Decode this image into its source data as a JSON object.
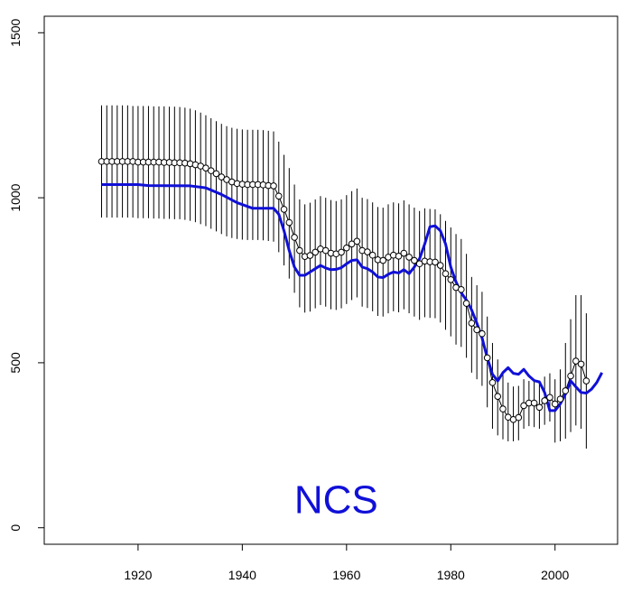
{
  "chart_data": {
    "type": "line",
    "title": "",
    "xlabel": "",
    "ylabel": "",
    "xlim": [
      1902,
      2012
    ],
    "ylim": [
      -50,
      1550
    ],
    "x_ticks": [
      1920,
      1940,
      1960,
      1980,
      2000
    ],
    "y_ticks": [
      0,
      500,
      1000,
      1500
    ],
    "x_tick_labels": [
      "1920",
      "1940",
      "1960",
      "1980",
      "2000"
    ],
    "y_tick_labels": [
      "0",
      "500",
      "1000",
      "1500"
    ],
    "grid": false,
    "legend": "none",
    "annotation": {
      "text": "NCS",
      "x": 1958,
      "y": 45,
      "color": "#1010d8"
    },
    "series": [
      {
        "style": "points-with-line-and-error-bars",
        "color": "#000000",
        "points": [
          [
            1913,
            1110
          ],
          [
            1914,
            1110
          ],
          [
            1915,
            1110
          ],
          [
            1916,
            1110
          ],
          [
            1917,
            1110
          ],
          [
            1918,
            1110
          ],
          [
            1919,
            1110
          ],
          [
            1920,
            1108
          ],
          [
            1921,
            1108
          ],
          [
            1922,
            1108
          ],
          [
            1923,
            1108
          ],
          [
            1924,
            1108
          ],
          [
            1925,
            1107
          ],
          [
            1926,
            1107
          ],
          [
            1927,
            1106
          ],
          [
            1928,
            1106
          ],
          [
            1929,
            1105
          ],
          [
            1930,
            1103
          ],
          [
            1931,
            1100
          ],
          [
            1932,
            1096
          ],
          [
            1933,
            1090
          ],
          [
            1934,
            1082
          ],
          [
            1935,
            1073
          ],
          [
            1936,
            1063
          ],
          [
            1937,
            1055
          ],
          [
            1938,
            1048
          ],
          [
            1939,
            1043
          ],
          [
            1940,
            1041
          ],
          [
            1941,
            1040
          ],
          [
            1942,
            1040
          ],
          [
            1943,
            1040
          ],
          [
            1944,
            1039
          ],
          [
            1945,
            1037
          ],
          [
            1946,
            1036
          ],
          [
            1947,
            1005
          ],
          [
            1948,
            965
          ],
          [
            1949,
            925
          ],
          [
            1950,
            880
          ],
          [
            1951,
            840
          ],
          [
            1952,
            822
          ],
          [
            1953,
            825
          ],
          [
            1954,
            835
          ],
          [
            1955,
            845
          ],
          [
            1956,
            840
          ],
          [
            1957,
            832
          ],
          [
            1958,
            830
          ],
          [
            1959,
            835
          ],
          [
            1960,
            848
          ],
          [
            1961,
            860
          ],
          [
            1962,
            868
          ],
          [
            1963,
            840
          ],
          [
            1964,
            836
          ],
          [
            1965,
            826
          ],
          [
            1966,
            812
          ],
          [
            1967,
            810
          ],
          [
            1968,
            820
          ],
          [
            1969,
            826
          ],
          [
            1970,
            823
          ],
          [
            1971,
            832
          ],
          [
            1972,
            820
          ],
          [
            1973,
            810
          ],
          [
            1974,
            800
          ],
          [
            1975,
            808
          ],
          [
            1976,
            806
          ],
          [
            1977,
            805
          ],
          [
            1978,
            795
          ],
          [
            1979,
            770
          ],
          [
            1980,
            752
          ],
          [
            1981,
            728
          ],
          [
            1982,
            722
          ],
          [
            1983,
            680
          ],
          [
            1984,
            620
          ],
          [
            1985,
            600
          ],
          [
            1986,
            588
          ],
          [
            1987,
            515
          ],
          [
            1988,
            440
          ],
          [
            1989,
            398
          ],
          [
            1990,
            360
          ],
          [
            1991,
            335
          ],
          [
            1992,
            328
          ],
          [
            1993,
            334
          ],
          [
            1994,
            370
          ],
          [
            1995,
            378
          ],
          [
            1996,
            378
          ],
          [
            1997,
            365
          ],
          [
            1998,
            385
          ],
          [
            1999,
            395
          ],
          [
            2000,
            375
          ],
          [
            2001,
            390
          ],
          [
            2002,
            415
          ],
          [
            2003,
            460
          ],
          [
            2004,
            505
          ],
          [
            2005,
            496
          ],
          [
            2006,
            445
          ]
        ],
        "error_bars": [
          [
            1913,
            940,
            1280
          ],
          [
            1914,
            940,
            1280
          ],
          [
            1915,
            940,
            1280
          ],
          [
            1916,
            940,
            1280
          ],
          [
            1917,
            940,
            1280
          ],
          [
            1918,
            940,
            1280
          ],
          [
            1919,
            940,
            1278
          ],
          [
            1920,
            938,
            1278
          ],
          [
            1921,
            938,
            1278
          ],
          [
            1922,
            938,
            1278
          ],
          [
            1923,
            937,
            1277
          ],
          [
            1924,
            937,
            1277
          ],
          [
            1925,
            936,
            1277
          ],
          [
            1926,
            936,
            1276
          ],
          [
            1927,
            935,
            1276
          ],
          [
            1928,
            935,
            1275
          ],
          [
            1929,
            933,
            1273
          ],
          [
            1930,
            930,
            1270
          ],
          [
            1931,
            926,
            1265
          ],
          [
            1932,
            920,
            1258
          ],
          [
            1933,
            914,
            1250
          ],
          [
            1934,
            906,
            1241
          ],
          [
            1935,
            898,
            1232
          ],
          [
            1936,
            890,
            1224
          ],
          [
            1937,
            883,
            1217
          ],
          [
            1938,
            878,
            1212
          ],
          [
            1939,
            875,
            1209
          ],
          [
            1940,
            873,
            1207
          ],
          [
            1941,
            872,
            1206
          ],
          [
            1942,
            872,
            1206
          ],
          [
            1943,
            872,
            1206
          ],
          [
            1944,
            871,
            1205
          ],
          [
            1945,
            869,
            1203
          ],
          [
            1946,
            867,
            1201
          ],
          [
            1947,
            835,
            1170
          ],
          [
            1948,
            795,
            1130
          ],
          [
            1949,
            755,
            1090
          ],
          [
            1950,
            712,
            1040
          ],
          [
            1951,
            668,
            995
          ],
          [
            1952,
            652,
            980
          ],
          [
            1953,
            655,
            985
          ],
          [
            1954,
            665,
            995
          ],
          [
            1955,
            675,
            1005
          ],
          [
            1956,
            670,
            1000
          ],
          [
            1957,
            662,
            993
          ],
          [
            1958,
            660,
            990
          ],
          [
            1959,
            665,
            995
          ],
          [
            1960,
            678,
            1008
          ],
          [
            1961,
            690,
            1020
          ],
          [
            1962,
            698,
            1028
          ],
          [
            1963,
            670,
            1000
          ],
          [
            1964,
            666,
            996
          ],
          [
            1965,
            656,
            986
          ],
          [
            1966,
            642,
            972
          ],
          [
            1967,
            640,
            970
          ],
          [
            1968,
            650,
            980
          ],
          [
            1969,
            656,
            986
          ],
          [
            1970,
            653,
            983
          ],
          [
            1971,
            662,
            992
          ],
          [
            1972,
            650,
            980
          ],
          [
            1973,
            640,
            970
          ],
          [
            1974,
            630,
            960
          ],
          [
            1975,
            638,
            968
          ],
          [
            1976,
            636,
            966
          ],
          [
            1977,
            635,
            965
          ],
          [
            1978,
            622,
            950
          ],
          [
            1979,
            600,
            930
          ],
          [
            1980,
            580,
            910
          ],
          [
            1981,
            555,
            890
          ],
          [
            1982,
            548,
            875
          ],
          [
            1983,
            515,
            830
          ],
          [
            1984,
            470,
            760
          ],
          [
            1985,
            450,
            735
          ],
          [
            1986,
            430,
            715
          ],
          [
            1987,
            365,
            640
          ],
          [
            1988,
            300,
            560
          ],
          [
            1989,
            280,
            510
          ],
          [
            1990,
            268,
            472
          ],
          [
            1991,
            262,
            440
          ],
          [
            1992,
            262,
            428
          ],
          [
            1993,
            265,
            430
          ],
          [
            1994,
            300,
            450
          ],
          [
            1995,
            308,
            445
          ],
          [
            1996,
            305,
            450
          ],
          [
            1997,
            300,
            438
          ],
          [
            1998,
            312,
            458
          ],
          [
            1999,
            322,
            468
          ],
          [
            2000,
            258,
            450
          ],
          [
            2001,
            262,
            480
          ],
          [
            2002,
            270,
            560
          ],
          [
            2003,
            290,
            632
          ],
          [
            2004,
            310,
            705
          ],
          [
            2005,
            300,
            705
          ],
          [
            2006,
            240,
            650
          ]
        ]
      },
      {
        "style": "line",
        "color": "#1010d8",
        "points": [
          [
            1913,
            1040
          ],
          [
            1917,
            1040
          ],
          [
            1920,
            1040
          ],
          [
            1922,
            1037
          ],
          [
            1930,
            1036
          ],
          [
            1933,
            1030
          ],
          [
            1936,
            1010
          ],
          [
            1939,
            985
          ],
          [
            1942,
            968
          ],
          [
            1946,
            968
          ],
          [
            1947,
            950
          ],
          [
            1948,
            900
          ],
          [
            1949,
            840
          ],
          [
            1950,
            790
          ],
          [
            1951,
            765
          ],
          [
            1952,
            765
          ],
          [
            1953,
            775
          ],
          [
            1954,
            785
          ],
          [
            1955,
            795
          ],
          [
            1956,
            787
          ],
          [
            1957,
            782
          ],
          [
            1958,
            783
          ],
          [
            1959,
            788
          ],
          [
            1960,
            800
          ],
          [
            1961,
            810
          ],
          [
            1962,
            812
          ],
          [
            1963,
            790
          ],
          [
            1964,
            785
          ],
          [
            1965,
            775
          ],
          [
            1966,
            760
          ],
          [
            1967,
            758
          ],
          [
            1968,
            768
          ],
          [
            1969,
            775
          ],
          [
            1970,
            772
          ],
          [
            1971,
            782
          ],
          [
            1972,
            770
          ],
          [
            1973,
            790
          ],
          [
            1974,
            815
          ],
          [
            1975,
            860
          ],
          [
            1976,
            912
          ],
          [
            1977,
            915
          ],
          [
            1978,
            900
          ],
          [
            1979,
            860
          ],
          [
            1980,
            790
          ],
          [
            1981,
            745
          ],
          [
            1982,
            712
          ],
          [
            1983,
            690
          ],
          [
            1984,
            660
          ],
          [
            1985,
            620
          ],
          [
            1986,
            575
          ],
          [
            1987,
            515
          ],
          [
            1988,
            465
          ],
          [
            1989,
            445
          ],
          [
            1990,
            470
          ],
          [
            1991,
            485
          ],
          [
            1992,
            468
          ],
          [
            1993,
            465
          ],
          [
            1994,
            480
          ],
          [
            1995,
            460
          ],
          [
            1996,
            446
          ],
          [
            1997,
            442
          ],
          [
            1998,
            410
          ],
          [
            1999,
            355
          ],
          [
            2000,
            355
          ],
          [
            2001,
            375
          ],
          [
            2002,
            405
          ],
          [
            2003,
            445
          ],
          [
            2004,
            427
          ],
          [
            2005,
            410
          ],
          [
            2006,
            408
          ],
          [
            2007,
            420
          ],
          [
            2008,
            440
          ],
          [
            2009,
            470
          ]
        ]
      }
    ]
  }
}
